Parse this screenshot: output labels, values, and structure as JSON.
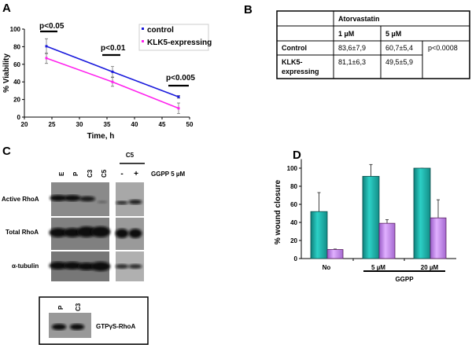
{
  "panels": {
    "a": "A",
    "b": "B",
    "c": "C",
    "d": "D"
  },
  "chart_data": [
    {
      "type": "line",
      "xlabel": "Time, h",
      "ylabel": "% Viability",
      "xlim": [
        20,
        50
      ],
      "ylim": [
        0,
        100
      ],
      "xticks": [
        "20",
        "25",
        "30",
        "35",
        "40",
        "45",
        "50"
      ],
      "yticks": [
        "0",
        "20",
        "40",
        "60",
        "80",
        "100"
      ],
      "x": [
        24,
        36,
        48
      ],
      "series": [
        {
          "name": "control",
          "color": "#1a1adc",
          "values": [
            80.5,
            51.5,
            23
          ],
          "errors": [
            8.5,
            6,
            1.5
          ]
        },
        {
          "name": "KLK5-expressing",
          "color": "#ff22ee",
          "values": [
            67,
            40,
            10
          ],
          "errors": [
            6,
            5,
            6
          ]
        }
      ],
      "legend": "top-right",
      "annotations": [
        "p<0.05",
        "p<0.01",
        "p<0.005"
      ],
      "grid": false
    },
    {
      "type": "bar",
      "ylabel": "% wound closure",
      "ylim": [
        0,
        110
      ],
      "yticks": [
        "0",
        "20",
        "40",
        "60",
        "80",
        "100"
      ],
      "categories": [
        "No",
        "5 µM",
        "20 µM"
      ],
      "group_label": "GGPP",
      "series": [
        {
          "color": "#20b8b0",
          "values": [
            52,
            91,
            100
          ],
          "errors": [
            21,
            13,
            0
          ]
        },
        {
          "color": "#c890f0",
          "values": [
            10,
            39,
            45
          ],
          "errors": [
            0.5,
            4,
            20
          ]
        }
      ],
      "grid": false
    }
  ],
  "table": {
    "header": "Atorvastatin",
    "columns": [
      "1 µM",
      "5 µM"
    ],
    "rows": [
      {
        "label": "Control",
        "values": [
          "83,6±7,9",
          "60,7±5,4"
        ]
      },
      {
        "label_lines": [
          "KLK5-",
          "expressing"
        ],
        "values": [
          "81,1±6,3",
          "49,5±5,9"
        ]
      }
    ],
    "pvalue": "p<0.0008"
  },
  "blot": {
    "lanes": [
      "E",
      "P",
      "C3",
      "C5"
    ],
    "group": "C5",
    "treat_lanes": [
      "-",
      "+"
    ],
    "treatment": "GGPP 5 µM",
    "rows": [
      "Active RhoA",
      "Total RhoA",
      "α-tubulin"
    ],
    "inset_lanes": [
      "P",
      "C3"
    ],
    "inset_label": "GTPγS-RhoA"
  }
}
